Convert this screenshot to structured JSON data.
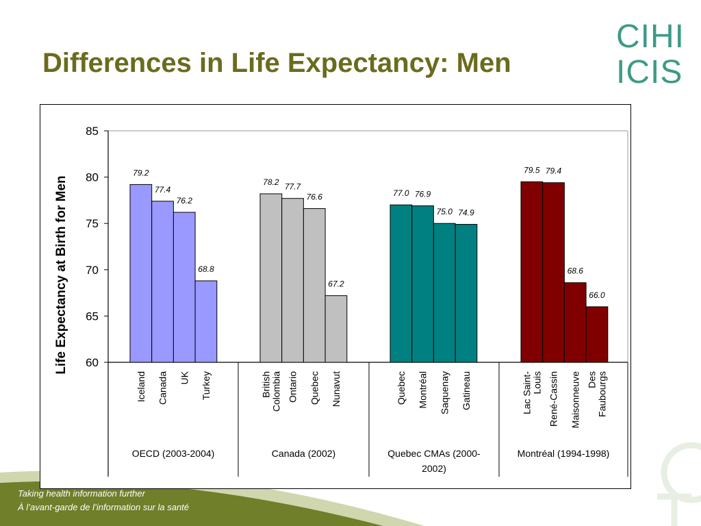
{
  "slide": {
    "title": "Differences in Life Expectancy: Men",
    "logo_line1": "CIHI",
    "logo_line2": "ICIS",
    "tagline_en": "Taking health information further",
    "tagline_fr": "À l’avant-garde de l’information sur la santé"
  },
  "colors": {
    "title": "#6b6b1e",
    "logo": "#3d9b86",
    "footer_band": "#6f7f2a"
  },
  "chart_data": {
    "type": "bar",
    "ylabel": "Life Expectancy at Birth for Men",
    "ylim": [
      60,
      85
    ],
    "yticks": [
      60,
      65,
      70,
      75,
      80,
      85
    ],
    "grid": false,
    "groups": [
      {
        "name": "OECD (2003-2004)",
        "color": "#9999ff",
        "categories": [
          "Iceland",
          "Canada",
          "UK",
          "Turkey"
        ],
        "values": [
          79.2,
          77.4,
          76.2,
          68.8
        ]
      },
      {
        "name": "Canada (2002)",
        "color": "#c0c0c0",
        "categories": [
          "British Colombia",
          "Ontario",
          "Quebec",
          "Nunavut"
        ],
        "values": [
          78.2,
          77.7,
          76.6,
          67.2
        ]
      },
      {
        "name": "Quebec CMAs (2000-2002)",
        "color": "#008080",
        "categories": [
          "Quebec",
          "Montréal",
          "Saquenay",
          "Gatineau"
        ],
        "values": [
          77.0,
          76.9,
          75.0,
          74.9
        ]
      },
      {
        "name": "Montréal (1994-1998)",
        "color": "#800000",
        "categories": [
          "Lac Saint-Louis",
          "René-Cassin",
          "Maisonneuve",
          "Des Faubourgs"
        ],
        "values": [
          79.5,
          79.4,
          68.6,
          66.0
        ]
      }
    ],
    "value_labels": [
      [
        "79.2",
        "77.4",
        "76.2",
        "68.8"
      ],
      [
        "78.2",
        "77.7",
        "76.6",
        "67.2"
      ],
      [
        "77.0",
        "76.9",
        "75.0",
        "74.9"
      ],
      [
        "79.5",
        "79.4",
        "68.6",
        "66.0"
      ]
    ],
    "category_label_lines": [
      [
        [
          "Iceland"
        ],
        [
          "Canada"
        ],
        [
          "UK"
        ],
        [
          "Turkey"
        ]
      ],
      [
        [
          "British",
          "Colombia"
        ],
        [
          "Ontario"
        ],
        [
          "Quebec"
        ],
        [
          "Nunavut"
        ]
      ],
      [
        [
          "Quebec"
        ],
        [
          "Montréal"
        ],
        [
          "Saquenay"
        ],
        [
          "Gatineau"
        ]
      ],
      [
        [
          "Lac Saint-",
          "Louis"
        ],
        [
          "René-Cassin"
        ],
        [
          "Maisonneuve"
        ],
        [
          "Des",
          "Faubourgs"
        ]
      ]
    ],
    "group_label_lines": [
      [
        "OECD (2003-2004)"
      ],
      [
        "Canada (2002)"
      ],
      [
        "Quebec CMAs (2000-",
        "2002)"
      ],
      [
        "Montréal (1994-1998)"
      ]
    ]
  }
}
